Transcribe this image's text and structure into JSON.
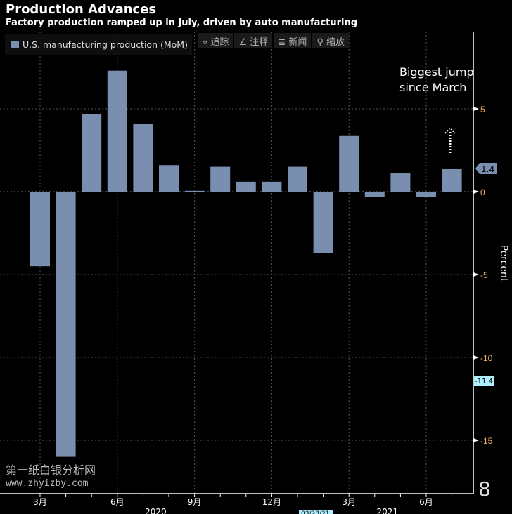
{
  "chart_data": {
    "type": "bar",
    "title": "Production Advances",
    "subtitle": "Factory production ramped up in July, driven by auto manufacturing",
    "legend": "U.S. manufacturing production (MoM)",
    "ylabel": "Percent",
    "ylim": [
      -16.5,
      9.5
    ],
    "yticks": [
      5,
      0,
      -5,
      -10,
      -15
    ],
    "categories": [
      "2020-03",
      "2020-04",
      "2020-05",
      "2020-06",
      "2020-07",
      "2020-08",
      "2020-09",
      "2020-10",
      "2020-11",
      "2020-12",
      "2021-01",
      "2021-02",
      "2021-03",
      "2021-04",
      "2021-05",
      "2021-06",
      "2021-07"
    ],
    "values": [
      -4.5,
      -16.0,
      4.7,
      7.3,
      4.1,
      1.6,
      0.05,
      1.5,
      0.6,
      0.6,
      1.5,
      -3.7,
      3.4,
      -0.3,
      1.1,
      -0.3,
      1.4
    ],
    "xticks": [
      {
        "label": "3月",
        "index": 0
      },
      {
        "label": "6月",
        "index": 3
      },
      {
        "label": "9月",
        "index": 6
      },
      {
        "label": "12月",
        "index": 9
      },
      {
        "label": "3月",
        "index": 12
      },
      {
        "label": "6月",
        "index": 15
      }
    ],
    "years": [
      {
        "label": "2020",
        "index": 4
      },
      {
        "label": "2021",
        "index": 13
      }
    ],
    "markers": [
      {
        "label": "1.4",
        "value": 1.4
      },
      {
        "label": "-11.4",
        "value": -11.4
      }
    ],
    "annotation": [
      "Biggest jump",
      "since March"
    ],
    "bar_color": "#7a8fb0",
    "tick_color": "#f0b060"
  },
  "toolbar": [
    "追踪",
    "注释",
    "新闻",
    "缩放"
  ],
  "watermark": "第一纸白银分析网",
  "watermark_url": "www.zhyizby.com",
  "date_badge": "03/28/21",
  "page_number": "8"
}
